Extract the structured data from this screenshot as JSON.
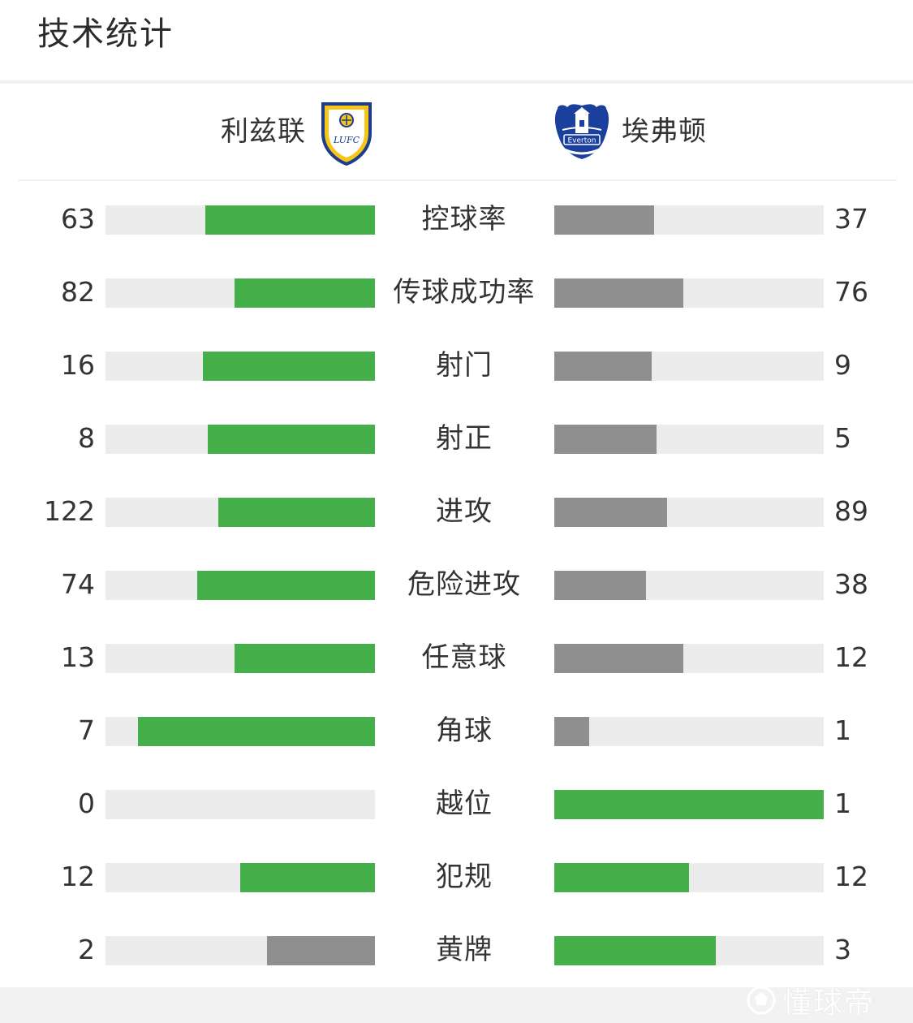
{
  "page": {
    "title": "技术统计"
  },
  "teams": {
    "home": {
      "name": "利兹联",
      "crest_icon": "leeds-united-crest-icon",
      "crest_text": "LUFC"
    },
    "away": {
      "name": "埃弗顿",
      "crest_icon": "everton-crest-icon",
      "crest_text": "Everton"
    }
  },
  "colors": {
    "leading": "#45b04a",
    "trailing": "#8f8f8f",
    "track": "#ececec"
  },
  "stats": [
    {
      "label": "控球率",
      "home": "63",
      "away": "37",
      "home_share": 0.63,
      "away_share": 0.37,
      "leader": "home"
    },
    {
      "label": "传球成功率",
      "home": "82",
      "away": "76",
      "home_share": 0.52,
      "away_share": 0.48,
      "leader": "home"
    },
    {
      "label": "射门",
      "home": "16",
      "away": "9",
      "home_share": 0.64,
      "away_share": 0.36,
      "leader": "home"
    },
    {
      "label": "射正",
      "home": "8",
      "away": "5",
      "home_share": 0.62,
      "away_share": 0.38,
      "leader": "home"
    },
    {
      "label": "进攻",
      "home": "122",
      "away": "89",
      "home_share": 0.58,
      "away_share": 0.42,
      "leader": "home"
    },
    {
      "label": "危险进攻",
      "home": "74",
      "away": "38",
      "home_share": 0.66,
      "away_share": 0.34,
      "leader": "home"
    },
    {
      "label": "任意球",
      "home": "13",
      "away": "12",
      "home_share": 0.52,
      "away_share": 0.48,
      "leader": "home"
    },
    {
      "label": "角球",
      "home": "7",
      "away": "1",
      "home_share": 0.88,
      "away_share": 0.13,
      "leader": "home"
    },
    {
      "label": "越位",
      "home": "0",
      "away": "1",
      "home_share": 0.0,
      "away_share": 1.0,
      "leader": "away"
    },
    {
      "label": "犯规",
      "home": "12",
      "away": "12",
      "home_share": 0.5,
      "away_share": 0.5,
      "leader": "both"
    },
    {
      "label": "黄牌",
      "home": "2",
      "away": "3",
      "home_share": 0.4,
      "away_share": 0.6,
      "leader": "away"
    }
  ],
  "watermark": {
    "text": "懂球帝",
    "icon": "football-icon"
  }
}
